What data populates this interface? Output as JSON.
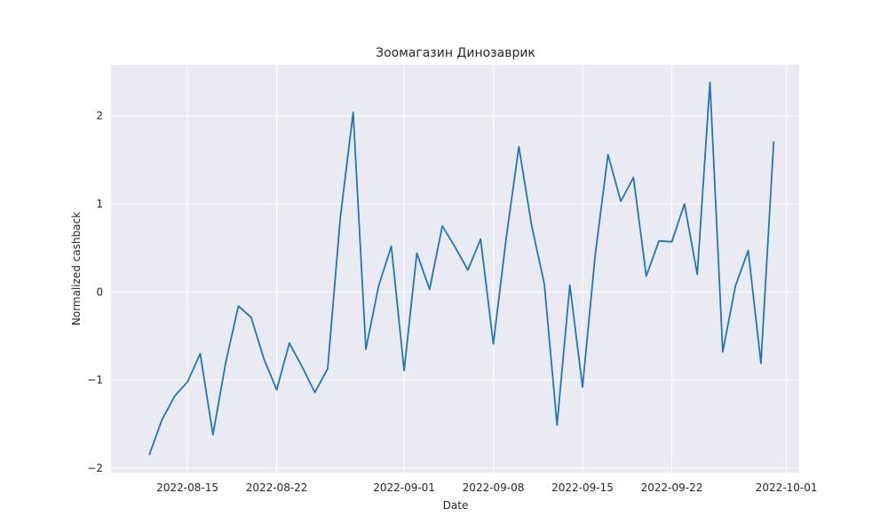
{
  "chart_data": {
    "type": "line",
    "title": "Зоомагазин Динозаврик",
    "xlabel": "Date",
    "ylabel": "Normalized cashback",
    "x_ticks": [
      "2022-08-15",
      "2022-08-22",
      "2022-09-01",
      "2022-09-08",
      "2022-09-15",
      "2022-09-22",
      "2022-10-01"
    ],
    "y_ticks": [
      "−2",
      "−1",
      "0",
      "1",
      "2"
    ],
    "y_tick_values": [
      -2,
      -1,
      0,
      1,
      2
    ],
    "xlim": [
      "2022-08-09",
      "2022-10-02"
    ],
    "ylim": [
      -2.05,
      2.58
    ],
    "grid": true,
    "background_color": "#eaeaf2",
    "grid_color": "#ffffff",
    "series": [
      {
        "color": "#1f77b4",
        "x": [
          "2022-08-12",
          "2022-08-13",
          "2022-08-14",
          "2022-08-15",
          "2022-08-16",
          "2022-08-17",
          "2022-08-18",
          "2022-08-19",
          "2022-08-20",
          "2022-08-21",
          "2022-08-22",
          "2022-08-23",
          "2022-08-24",
          "2022-08-25",
          "2022-08-26",
          "2022-08-27",
          "2022-08-28",
          "2022-08-29",
          "2022-08-30",
          "2022-08-31",
          "2022-09-01",
          "2022-09-02",
          "2022-09-03",
          "2022-09-04",
          "2022-09-05",
          "2022-09-06",
          "2022-09-07",
          "2022-09-08",
          "2022-09-09",
          "2022-09-10",
          "2022-09-11",
          "2022-09-12",
          "2022-09-13",
          "2022-09-14",
          "2022-09-15",
          "2022-09-16",
          "2022-09-17",
          "2022-09-18",
          "2022-09-19",
          "2022-09-20",
          "2022-09-21",
          "2022-09-22",
          "2022-09-23",
          "2022-09-24",
          "2022-09-25",
          "2022-09-26",
          "2022-09-27",
          "2022-09-28",
          "2022-09-29",
          "2022-09-30"
        ],
        "y": [
          -1.85,
          -1.45,
          -1.18,
          -1.02,
          -0.7,
          -1.62,
          -0.8,
          -0.16,
          -0.29,
          -0.76,
          -1.11,
          -0.58,
          -0.85,
          -1.14,
          -0.87,
          0.85,
          2.04,
          -0.65,
          0.07,
          0.52,
          -0.89,
          0.44,
          0.03,
          0.75,
          0.51,
          0.25,
          0.6,
          -0.59,
          0.6,
          1.65,
          0.76,
          0.09,
          -1.51,
          0.08,
          -1.08,
          0.43,
          1.56,
          1.03,
          1.3,
          0.18,
          0.58,
          0.57,
          1.0,
          0.2,
          2.38,
          -0.68,
          0.07,
          0.47,
          -0.81,
          1.71
        ]
      }
    ]
  }
}
